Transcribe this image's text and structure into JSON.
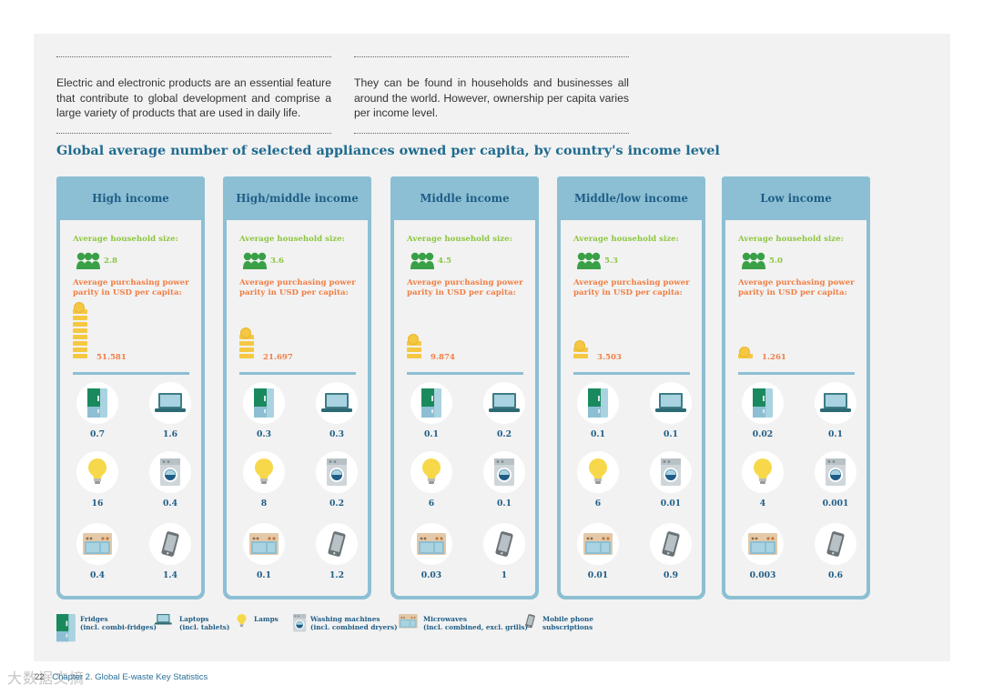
{
  "intro": {
    "left": "Electric and electronic products are an essential feature that contribute to global development and comprise a large variety of products that are used in daily life.",
    "right": "They can be found in households and businesses all around the world. However, ownership per capita varies per income level."
  },
  "heading": "Global average number of selected appliances owned per capita, by country's income level",
  "labels": {
    "household_size": "Average household size:",
    "ppp": "Average purchasing power parity in USD per capita:"
  },
  "columns": [
    {
      "title": "High income",
      "household_size": "2.8",
      "ppp": "51.581",
      "coin_count": 8,
      "appliances": {
        "fridges": "0.7",
        "laptops": "1.6",
        "lamps": "16",
        "washing": "0.4",
        "microwaves": "0.4",
        "phones": "1.4"
      }
    },
    {
      "title": "High/middle income",
      "household_size": "3.6",
      "ppp": "21.697",
      "coin_count": 4,
      "appliances": {
        "fridges": "0.3",
        "laptops": "0.3",
        "lamps": "8",
        "washing": "0.2",
        "microwaves": "0.1",
        "phones": "1.2"
      }
    },
    {
      "title": "Middle income",
      "household_size": "4.5",
      "ppp": "9.874",
      "coin_count": 3,
      "appliances": {
        "fridges": "0.1",
        "laptops": "0.2",
        "lamps": "6",
        "washing": "0.1",
        "microwaves": "0.03",
        "phones": "1"
      }
    },
    {
      "title": "Middle/low income",
      "household_size": "5.3",
      "ppp": "3.503",
      "coin_count": 2,
      "appliances": {
        "fridges": "0.1",
        "laptops": "0.1",
        "lamps": "6",
        "washing": "0.01",
        "microwaves": "0.01",
        "phones": "0.9"
      }
    },
    {
      "title": "Low income",
      "household_size": "5.0",
      "ppp": "1.261",
      "coin_count": 1,
      "appliances": {
        "fridges": "0.02",
        "laptops": "0.1",
        "lamps": "4",
        "washing": "0.001",
        "microwaves": "0.003",
        "phones": "0.6"
      }
    }
  ],
  "legend": {
    "fridges": {
      "line1": "Fridges",
      "line2": "(incl. combi-fridges)"
    },
    "laptops": {
      "line1": "Laptops",
      "line2": "(incl. tablets)"
    },
    "lamps": {
      "line1": "Lamps",
      "line2": ""
    },
    "washing": {
      "line1": "Washing machines",
      "line2": "(incl. combined dryers)"
    },
    "microwaves": {
      "line1": "Microwaves",
      "line2": "(incl. combined, excl. grills)"
    },
    "phones": {
      "line1": "Mobile phone",
      "line2": "subscriptions"
    }
  },
  "footer": {
    "page": "22",
    "text": "Chapter 2. Global E-waste Key Statistics"
  },
  "watermark": "大数据文摘",
  "colors": {
    "blue_header": "#8cbfd3",
    "title_blue": "#1f5d86",
    "green": "#8cc63f",
    "orange": "#f07f45",
    "coin": "#f5c842",
    "fridge": "#1a8a5e",
    "laptop": "#3e7c86"
  }
}
